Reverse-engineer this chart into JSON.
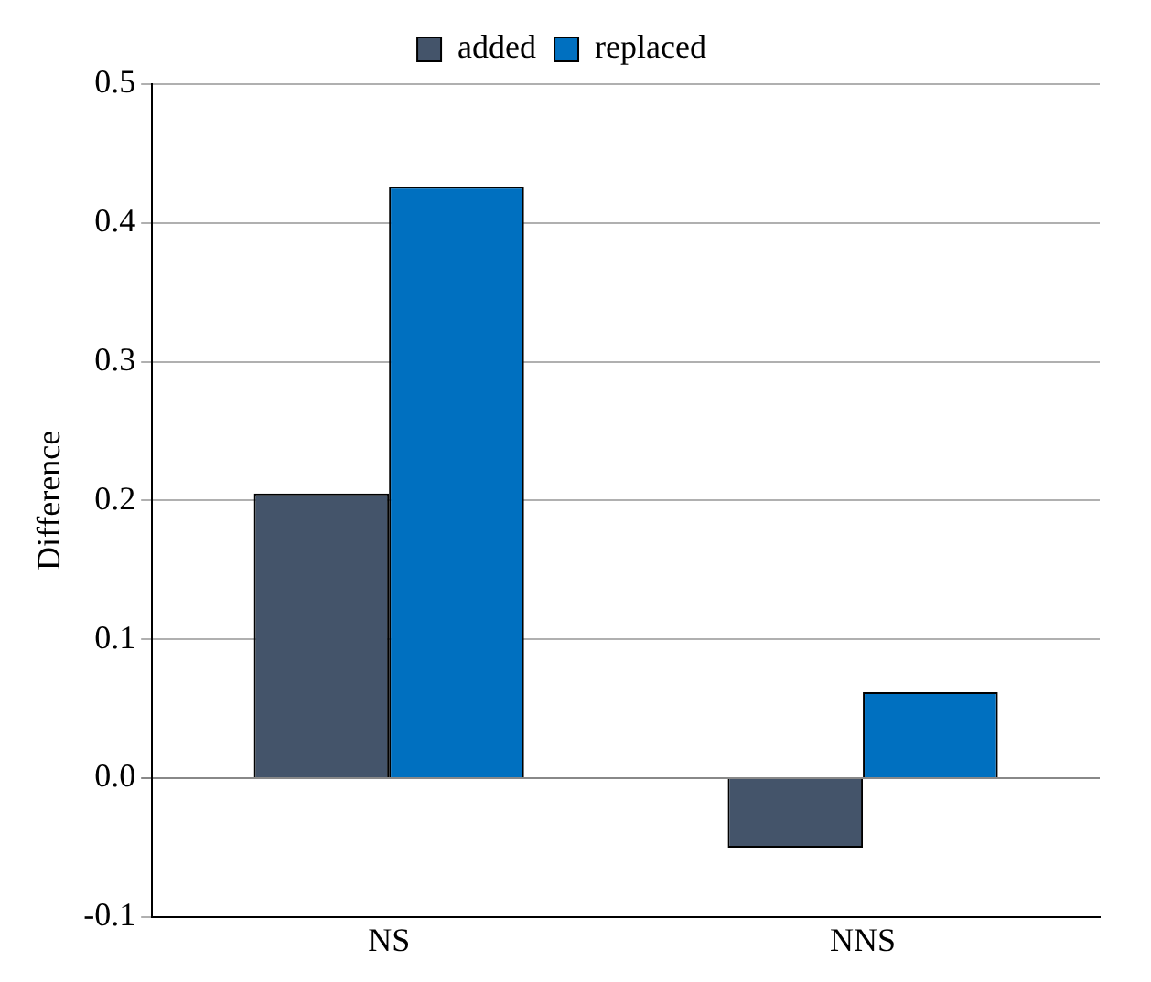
{
  "chart_data": {
    "type": "bar",
    "ylabel": "Difference",
    "categories": [
      "NS",
      "NNS"
    ],
    "series": [
      {
        "name": "added",
        "color": "#44546a",
        "values": [
          0.205,
          -0.05
        ]
      },
      {
        "name": "replaced",
        "color": "#0070c0",
        "values": [
          0.426,
          0.062
        ]
      }
    ],
    "ylim": [
      -0.1,
      0.5
    ],
    "yticks": [
      -0.1,
      {
        "value": 0,
        "label": "0.0"
      },
      0.1,
      0.2,
      0.3,
      0.4,
      0.5
    ],
    "grid": "y",
    "legend": "top"
  }
}
